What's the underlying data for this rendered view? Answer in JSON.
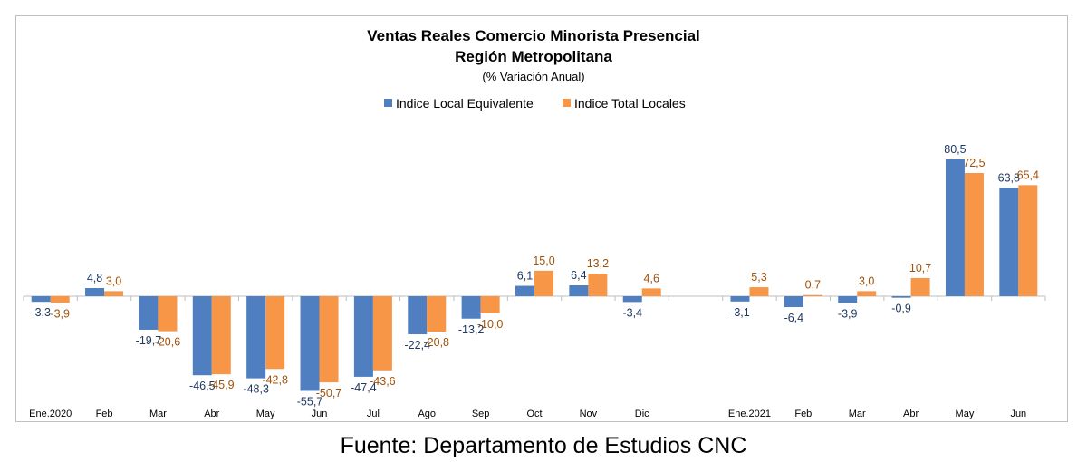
{
  "colors": {
    "series1": "#4f7fc1",
    "series2": "#f79646",
    "label1": "#1f3864",
    "label2": "#a0520a",
    "axis": "#bfbfbf"
  },
  "source": "Fuente: Departamento de Estudios CNC",
  "chart_data": {
    "type": "bar",
    "title": "Ventas Reales Comercio Minorista Presencial",
    "title2": "Región Metropolitana",
    "subtitle": "(% Variación Anual)",
    "legend_position": "top-center",
    "grid": false,
    "ylim": [
      -60,
      85
    ],
    "categories": [
      "Ene.2020",
      "Feb",
      "Mar",
      "Abr",
      "May",
      "Jun",
      "Jul",
      "Ago",
      "Sep",
      "Oct",
      "Nov",
      "Dic",
      "",
      "Ene.2021",
      "Feb",
      "Mar",
      "Abr",
      "May",
      "Jun"
    ],
    "series": [
      {
        "name": "Indice Local Equivalente",
        "values": [
          -3.3,
          4.8,
          -19.7,
          -46.5,
          -48.3,
          -55.7,
          -47.4,
          -22.4,
          -13.2,
          6.1,
          6.4,
          -3.4,
          null,
          -3.1,
          -6.4,
          -3.9,
          -0.9,
          80.5,
          63.8
        ],
        "labels": [
          "-3,3",
          "4,8",
          "-19,7",
          "-46,5",
          "-48,3",
          "-55,7",
          "-47,4",
          "-22,4",
          "-13,2",
          "6,1",
          "6,4",
          "-3,4",
          "",
          "-3,1",
          "-6,4",
          "-3,9",
          "-0,9",
          "80,5",
          "63,8"
        ]
      },
      {
        "name": "Indice Total Locales",
        "values": [
          -3.9,
          3.0,
          -20.6,
          -45.9,
          -42.8,
          -50.7,
          -43.6,
          -20.8,
          -10.0,
          15.0,
          13.2,
          4.6,
          null,
          5.3,
          0.7,
          3.0,
          10.7,
          72.5,
          65.4
        ],
        "labels": [
          "-3,9",
          "3,0",
          "-20,6",
          "-45,9",
          "-42,8",
          "-50,7",
          "-43,6",
          "-20,8",
          "-10,0",
          "15,0",
          "13,2",
          "4,6",
          "",
          "5,3",
          "0,7",
          "3,0",
          "10,7",
          "72,5",
          "65,4"
        ]
      }
    ]
  }
}
